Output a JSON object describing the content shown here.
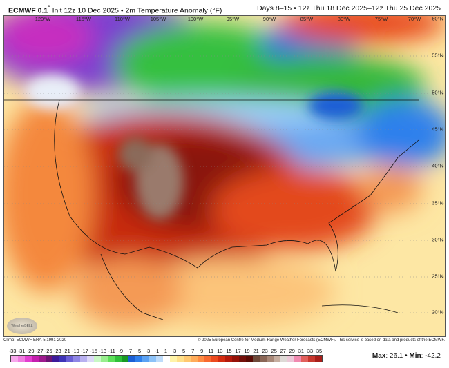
{
  "header": {
    "model": "ECMWF 0.1",
    "degree": "°",
    "init": "Init 12z 10 Dec 2025",
    "sep": "•",
    "product": "2m Temperature Anomaly (°F)",
    "days": "Days 8–15",
    "valid": "12z Thu 18 Dec 2025–12z Thu 25 Dec 2025"
  },
  "map": {
    "longitude_labels": [
      "120°W",
      "115°W",
      "110°W",
      "105°W",
      "100°W",
      "95°W",
      "90°W",
      "85°W",
      "80°W",
      "75°W",
      "70°W"
    ],
    "latitude_labels": [
      "60°N",
      "55°N",
      "50°N",
      "45°N",
      "40°N",
      "35°N",
      "30°N",
      "25°N",
      "20°N"
    ],
    "logo_text": "WeatherBELL"
  },
  "footer": {
    "climo": "Climo: ECMWF ERA-5 1991-2020",
    "copyright": "© 2025 European Centre for Medium-Range Weather Forecasts (ECMWF). This service is based on data and products of the ECMWF."
  },
  "colorbar": {
    "ticks": [
      "-33",
      "-31",
      "-29",
      "-27",
      "-25",
      "-23",
      "-21",
      "-19",
      "-17",
      "-15",
      "-13",
      "-11",
      "-9",
      "-7",
      "-5",
      "-3",
      "-1",
      "1",
      "3",
      "5",
      "7",
      "9",
      "11",
      "13",
      "15",
      "17",
      "19",
      "21",
      "23",
      "25",
      "27",
      "29",
      "31",
      "33",
      "35"
    ],
    "colors": [
      "#f7a8ec",
      "#f07ce0",
      "#e33fd0",
      "#c51eaf",
      "#9e1a8e",
      "#6e1474",
      "#3c1a9a",
      "#3e33b8",
      "#6a5fd6",
      "#8f86e6",
      "#b8b0f0",
      "#dcd8f8",
      "#c8f7c4",
      "#98ee8e",
      "#5de05a",
      "#2fc03a",
      "#189a24",
      "#1a5fd6",
      "#2f80ec",
      "#5aa2f4",
      "#8cc2f8",
      "#bedcfb",
      "#ffffff",
      "#fff4a8",
      "#ffe08a",
      "#ffc870",
      "#ffac5a",
      "#ff8c44",
      "#f86a30",
      "#ec4a1e",
      "#d42c10",
      "#b51a0c",
      "#961208",
      "#74100a",
      "#5a0c06",
      "#6e4a3a",
      "#8a6656",
      "#a88878",
      "#c6aea0",
      "#dedad6",
      "#ecc8d8",
      "#f08ab0",
      "#e2605c",
      "#c8382e",
      "#a81e1a"
    ],
    "max_label": "Max",
    "max_value": "26.1",
    "min_label": "Min",
    "min_value": "-42.2"
  }
}
